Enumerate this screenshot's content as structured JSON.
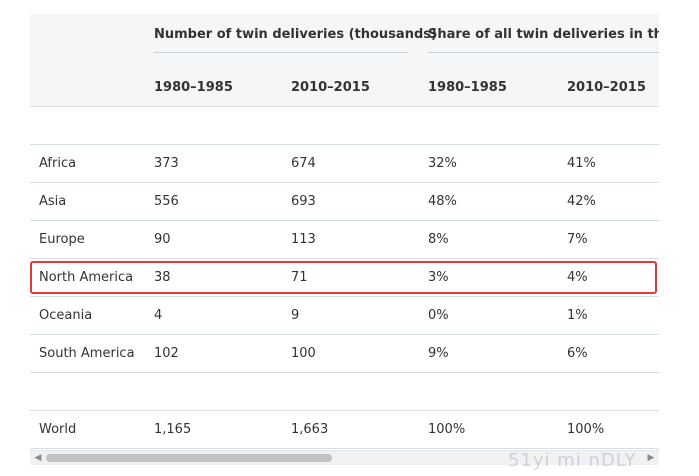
{
  "table": {
    "group_headers": [
      "Number of twin deliveries (thousands)",
      "Share of all twin deliveries in the w"
    ],
    "sub_headers": [
      "1980–1985",
      "2010–2015",
      "1980–1985",
      "2010–2015"
    ],
    "rows": [
      {
        "region": "Africa",
        "n1": "373",
        "n2": "674",
        "s1": "32%",
        "s2": "41%"
      },
      {
        "region": "Asia",
        "n1": "556",
        "n2": "693",
        "s1": "48%",
        "s2": "42%"
      },
      {
        "region": "Europe",
        "n1": "90",
        "n2": "113",
        "s1": "8%",
        "s2": "7%"
      },
      {
        "region": "North America",
        "n1": "38",
        "n2": "71",
        "s1": "3%",
        "s2": "4%"
      },
      {
        "region": "Oceania",
        "n1": "4",
        "n2": "9",
        "s1": "0%",
        "s2": "1%"
      },
      {
        "region": "South America",
        "n1": "102",
        "n2": "100",
        "s1": "9%",
        "s2": "6%"
      }
    ],
    "total": {
      "region": "World",
      "n1": "1,165",
      "n2": "1,663",
      "s1": "100%",
      "s2": "100%"
    }
  },
  "highlight_color": "#e03a3a",
  "watermark": "51yi mi nDLY"
}
